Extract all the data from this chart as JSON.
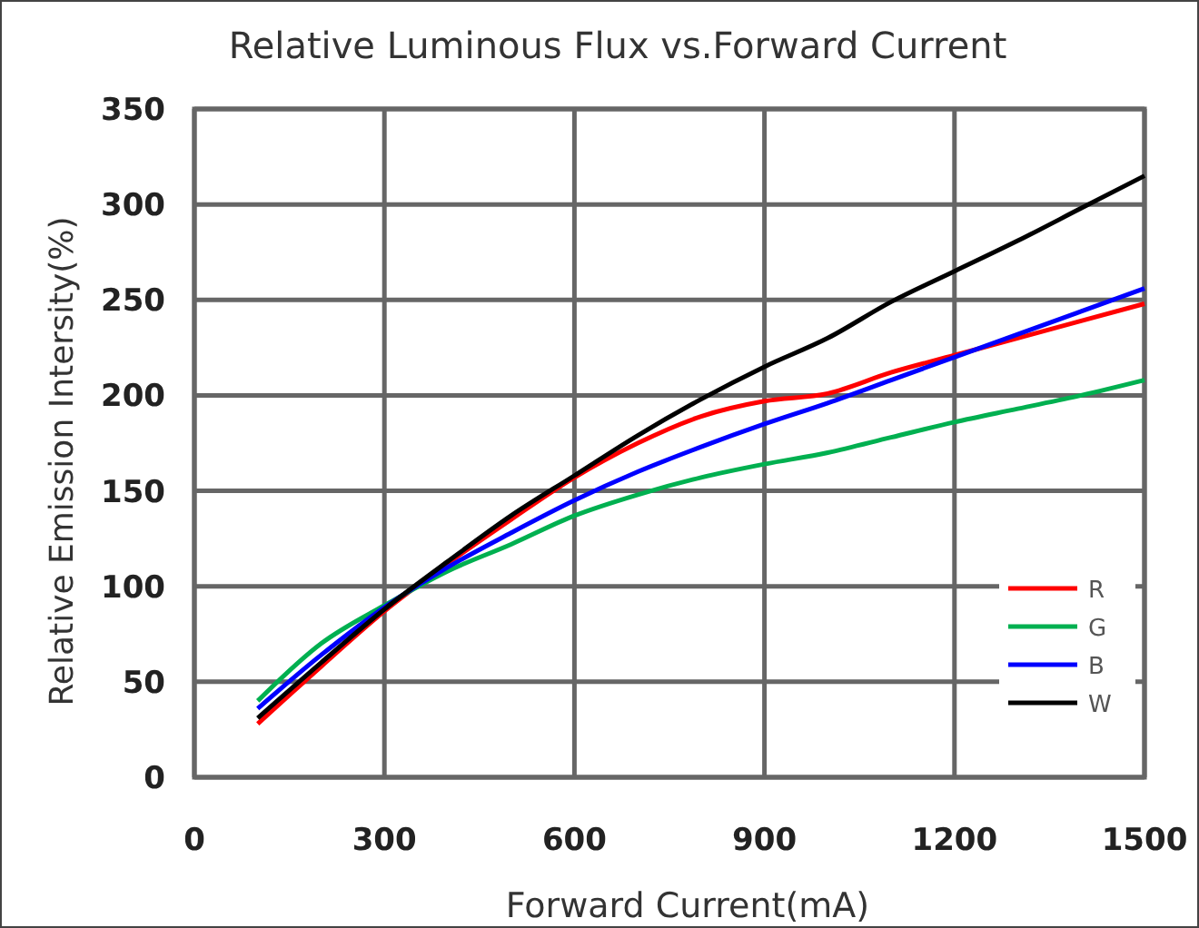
{
  "chart_data": {
    "type": "line",
    "title": "Relative Luminous Flux vs.Forward Current",
    "xlabel": "Forward Current(mA)",
    "ylabel": "Relative Emission Intersity(%)",
    "x": [
      100,
      200,
      300,
      400,
      500,
      600,
      700,
      800,
      900,
      1000,
      1100,
      1200,
      1300,
      1400,
      1500
    ],
    "series": [
      {
        "name": "R",
        "color": "#ff0000",
        "values": [
          28,
          58,
          87,
          112,
          135,
          157,
          175,
          189,
          197,
          201,
          212,
          221,
          230,
          239,
          248
        ]
      },
      {
        "name": "G",
        "color": "#00b050",
        "values": [
          40,
          70,
          90,
          108,
          122,
          137,
          148,
          157,
          164,
          170,
          178,
          186,
          193,
          200,
          208
        ]
      },
      {
        "name": "B",
        "color": "#0000ff",
        "values": [
          36,
          64,
          89,
          110,
          128,
          145,
          160,
          173,
          185,
          196,
          208,
          220,
          232,
          244,
          256
        ]
      },
      {
        "name": "W",
        "color": "#000000",
        "values": [
          31,
          60,
          88,
          113,
          137,
          158,
          179,
          198,
          215,
          230,
          249,
          265,
          281,
          298,
          315
        ]
      }
    ],
    "xlim": [
      0,
      1500
    ],
    "xticks": [
      0,
      300,
      600,
      900,
      1200,
      1500
    ],
    "ylim": [
      0,
      350
    ],
    "yticks": [
      0,
      50,
      100,
      150,
      200,
      250,
      300,
      350
    ],
    "grid": true,
    "legend": "bottom right",
    "marker": "none",
    "line_style": "solid"
  }
}
